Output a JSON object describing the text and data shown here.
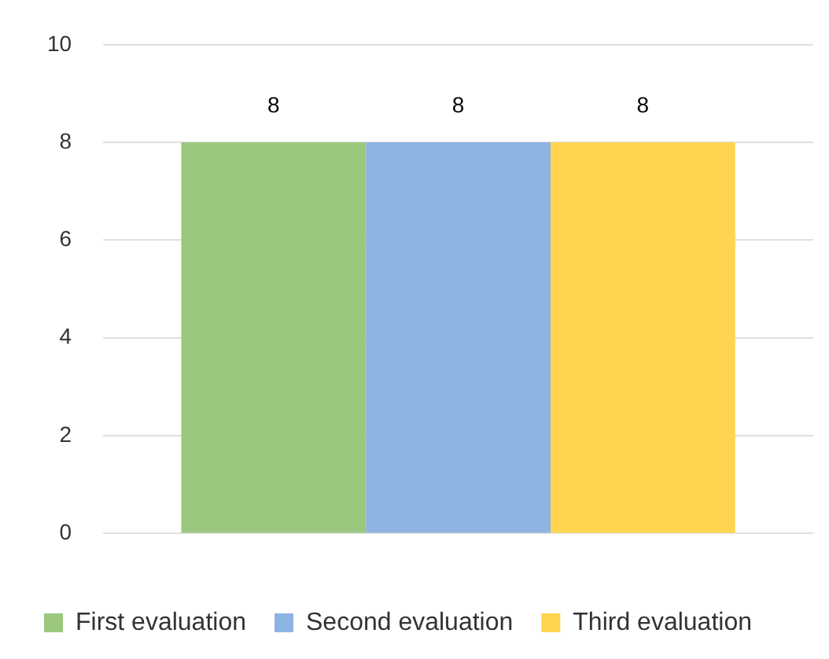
{
  "chart_data": {
    "type": "bar",
    "categories": [
      null
    ],
    "series": [
      {
        "name": "First evaluation",
        "color": "#9bc77e",
        "values": [
          8
        ]
      },
      {
        "name": "Second evaluation",
        "color": "#8db4e2",
        "values": [
          8
        ]
      },
      {
        "name": "Third evaluation",
        "color": "#ffd54f",
        "values": [
          8
        ]
      }
    ],
    "ylim": [
      0,
      10
    ],
    "yticks": [
      0,
      2,
      4,
      6,
      8,
      10
    ],
    "grid": "y",
    "legend": "bottom",
    "data_labels": true
  }
}
